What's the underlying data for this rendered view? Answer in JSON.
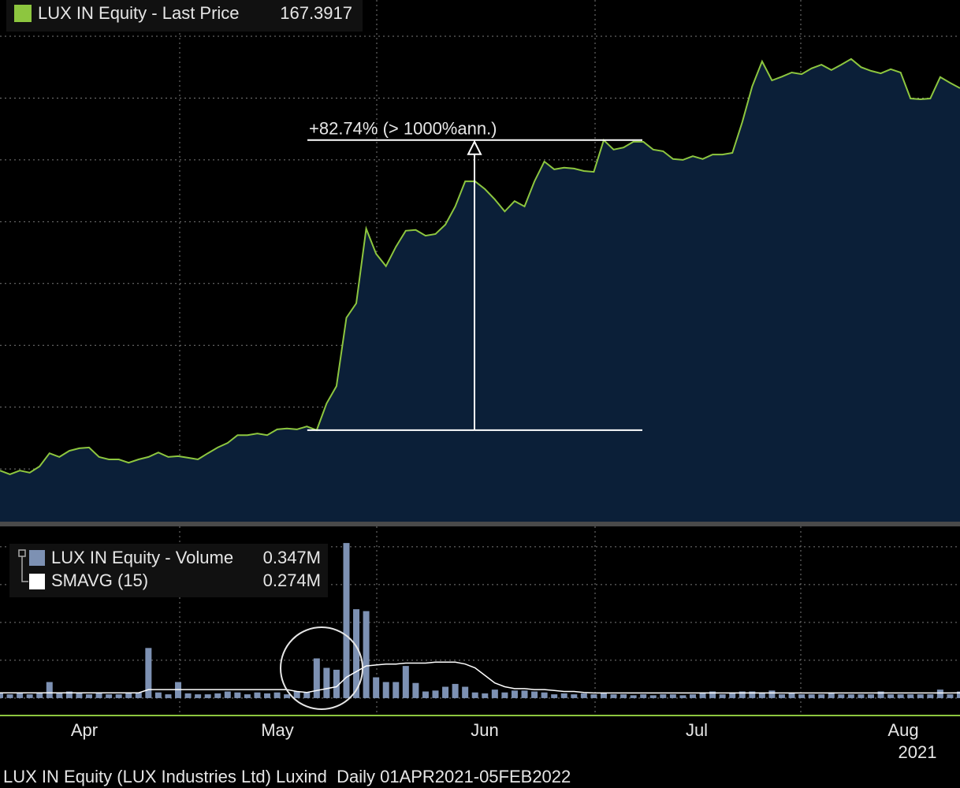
{
  "chart_data": [
    {
      "type": "area",
      "series": [
        {
          "name": "LUX IN Equity - Last Price",
          "color": "#8dc63f",
          "fill": "#0b1f38",
          "last_value": 167.3917,
          "values": [
            74.6,
            73.7,
            74.6,
            74.1,
            75.6,
            78.8,
            77.9,
            79.4,
            80.0,
            80.2,
            77.9,
            77.3,
            77.3,
            76.5,
            77.3,
            77.9,
            79.0,
            77.9,
            78.1,
            77.7,
            77.3,
            78.8,
            80.2,
            81.3,
            83.2,
            83.2,
            83.6,
            83.2,
            84.6,
            84.8,
            84.6,
            85.3,
            84.4,
            90.9,
            95.1,
            111.7,
            115.2,
            133.3,
            127.2,
            124.2,
            128.9,
            132.8,
            133.0,
            131.6,
            132.0,
            134.3,
            138.7,
            144.8,
            144.8,
            142.9,
            140.4,
            137.5,
            140.0,
            138.7,
            144.8,
            149.6,
            147.7,
            148.1,
            147.9,
            147.3,
            147.1,
            154.8,
            152.5,
            153.0,
            154.4,
            154.4,
            152.5,
            152.1,
            150.2,
            150.0,
            150.9,
            150.2,
            151.3,
            151.3,
            151.7,
            159.2,
            167.8,
            173.9,
            169.3,
            170.2,
            171.2,
            170.8,
            172.2,
            173.1,
            171.8,
            173.1,
            174.5,
            172.5,
            171.6,
            171.0,
            172.0,
            171.2,
            164.9,
            164.7,
            164.9,
            170.1,
            168.7,
            167.4
          ]
        }
      ],
      "ylim": [
        62.2,
        188.8
      ],
      "yticks": [
        75,
        90,
        105,
        120,
        135,
        150,
        165,
        180
      ],
      "grid": true,
      "annotation": {
        "text": "+82.74% (> 1000%ann.)"
      }
    },
    {
      "type": "bar",
      "series": [
        {
          "name": "LUX IN Equity - Volume",
          "type": "bar",
          "color": "#7d91b3",
          "last": {
            "value": 0.347,
            "label": "0.347M"
          },
          "values": [
            0.25,
            0.2,
            0.25,
            0.2,
            0.3,
            0.85,
            0.3,
            0.35,
            0.25,
            0.2,
            0.25,
            0.2,
            0.2,
            0.25,
            0.3,
            2.65,
            0.3,
            0.2,
            0.85,
            0.25,
            0.2,
            0.2,
            0.25,
            0.35,
            0.3,
            0.2,
            0.3,
            0.25,
            0.3,
            0.2,
            0.35,
            0.3,
            2.1,
            1.6,
            1.5,
            8.2,
            4.7,
            4.6,
            1.1,
            0.85,
            0.85,
            1.7,
            0.8,
            0.35,
            0.4,
            0.6,
            0.75,
            0.6,
            0.3,
            0.25,
            0.45,
            0.3,
            0.4,
            0.4,
            0.35,
            0.3,
            0.2,
            0.25,
            0.2,
            0.25,
            0.2,
            0.25,
            0.2,
            0.2,
            0.15,
            0.2,
            0.15,
            0.2,
            0.2,
            0.15,
            0.2,
            0.3,
            0.35,
            0.2,
            0.3,
            0.35,
            0.35,
            0.3,
            0.4,
            0.2,
            0.25,
            0.2,
            0.2,
            0.2,
            0.3,
            0.2,
            0.2,
            0.2,
            0.2,
            0.35,
            0.2,
            0.2,
            0.2,
            0.2,
            0.2,
            0.45,
            0.2,
            0.347
          ]
        },
        {
          "name": "SMAVG (15)",
          "type": "line",
          "color": "#ffffff",
          "last": {
            "value": 0.274,
            "label": "0.274M"
          },
          "values": [
            0.28,
            0.28,
            0.28,
            0.28,
            0.28,
            0.28,
            0.28,
            0.28,
            0.28,
            0.28,
            0.28,
            0.28,
            0.28,
            0.28,
            0.28,
            0.45,
            0.45,
            0.45,
            0.45,
            0.45,
            0.45,
            0.45,
            0.45,
            0.45,
            0.45,
            0.45,
            0.45,
            0.45,
            0.45,
            0.45,
            0.35,
            0.3,
            0.4,
            0.5,
            0.6,
            1.1,
            1.4,
            1.7,
            1.75,
            1.8,
            1.8,
            1.85,
            1.85,
            1.85,
            1.9,
            1.9,
            1.9,
            1.8,
            1.6,
            1.2,
            0.8,
            0.6,
            0.5,
            0.5,
            0.45,
            0.45,
            0.4,
            0.35,
            0.35,
            0.3,
            0.27,
            0.27,
            0.27,
            0.27,
            0.27,
            0.27,
            0.27,
            0.27,
            0.27,
            0.27,
            0.27,
            0.27,
            0.27,
            0.27,
            0.27,
            0.27,
            0.27,
            0.27,
            0.27,
            0.27,
            0.27,
            0.27,
            0.27,
            0.27,
            0.27,
            0.27,
            0.27,
            0.27,
            0.27,
            0.27,
            0.27,
            0.27,
            0.27,
            0.27,
            0.27,
            0.27,
            0.27,
            0.274
          ]
        }
      ],
      "ylim": [
        -0.92,
        9.08
      ],
      "yticks": [
        0,
        2,
        4,
        6,
        8
      ],
      "grid": true,
      "x_labels": [
        "Apr",
        "May",
        "Jun",
        "Jul",
        "Aug"
      ],
      "x_sublabel": "2021"
    }
  ],
  "footer": "LUX IN Equity (LUX Industries Ltd) Luxind  Daily 01APR2021-05FEB2022"
}
